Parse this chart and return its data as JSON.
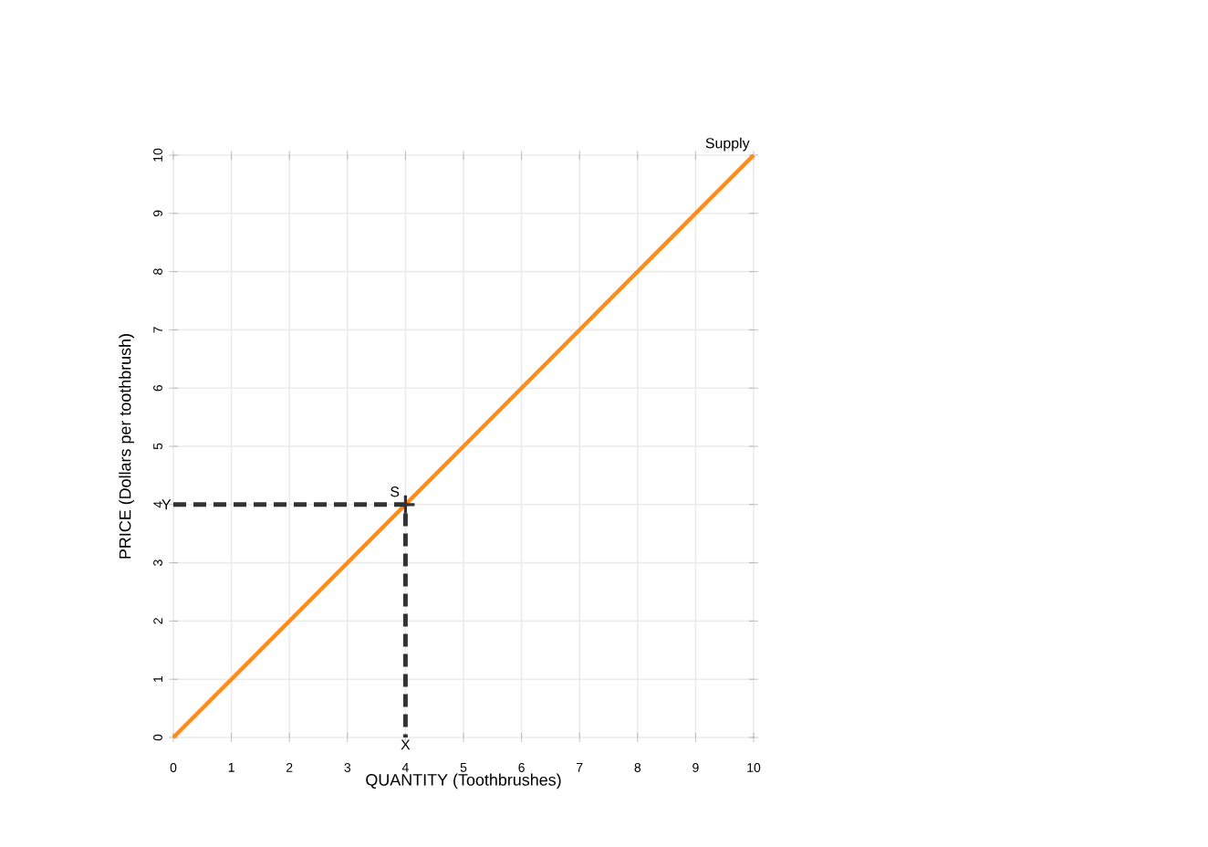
{
  "chart_data": {
    "type": "line",
    "xlabel": "QUANTITY (Toothbrushes)",
    "ylabel": "PRICE (Dollars per toothbrush)",
    "xlim": [
      0,
      10
    ],
    "ylim": [
      0,
      10
    ],
    "xticks": [
      0,
      1,
      2,
      3,
      4,
      5,
      6,
      7,
      8,
      9,
      10
    ],
    "yticks": [
      0,
      1,
      2,
      3,
      4,
      5,
      6,
      7,
      8,
      9,
      10
    ],
    "grid": true,
    "series": [
      {
        "name": "Supply",
        "color": "#ff8c1a",
        "x": [
          0,
          10
        ],
        "values": [
          0,
          10
        ],
        "line_style": "solid"
      },
      {
        "type": "line",
        "color": "#333333",
        "x": [
          0,
          4,
          4
        ],
        "values": [
          4,
          4,
          0
        ],
        "line_style": "dashed"
      },
      {
        "name": "S",
        "type": "scatter",
        "color": "#333333",
        "x": [
          4
        ],
        "values": [
          4
        ],
        "marker": "cross"
      }
    ],
    "annotations": [
      {
        "text": "Y",
        "x": 0,
        "y": 4
      },
      {
        "text": "X",
        "x": 4,
        "y": 0
      }
    ]
  }
}
